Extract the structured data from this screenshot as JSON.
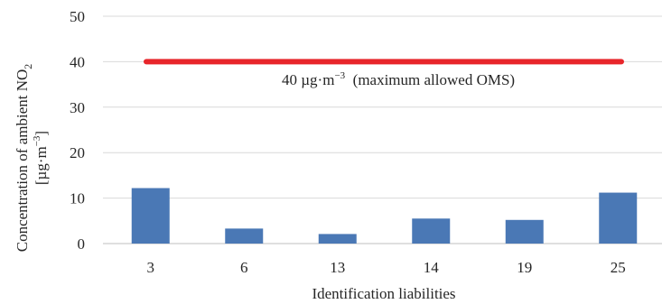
{
  "chart_data": {
    "type": "bar",
    "categories": [
      "3",
      "6",
      "13",
      "14",
      "19",
      "25"
    ],
    "values": [
      12.2,
      3.3,
      2.1,
      5.5,
      5.2,
      11.2
    ],
    "ylim": [
      0,
      50
    ],
    "yticks": [
      0,
      10,
      20,
      30,
      40,
      50
    ],
    "xlabel": "Identification liabilities",
    "ylabel": {
      "line1_main": "Concentration of ambient NO",
      "line1_sub": "2",
      "line2_pre": "[µg·m",
      "line2_sup": "−3",
      "line2_post": "]"
    },
    "grid": true,
    "bar_color": "#4a78b5",
    "reference_line": {
      "value": 40,
      "color": "#e8262b",
      "label_pre": "40 µg·m",
      "label_sup": "−3",
      "label_post": "  (maximum allowed OMS)"
    }
  }
}
